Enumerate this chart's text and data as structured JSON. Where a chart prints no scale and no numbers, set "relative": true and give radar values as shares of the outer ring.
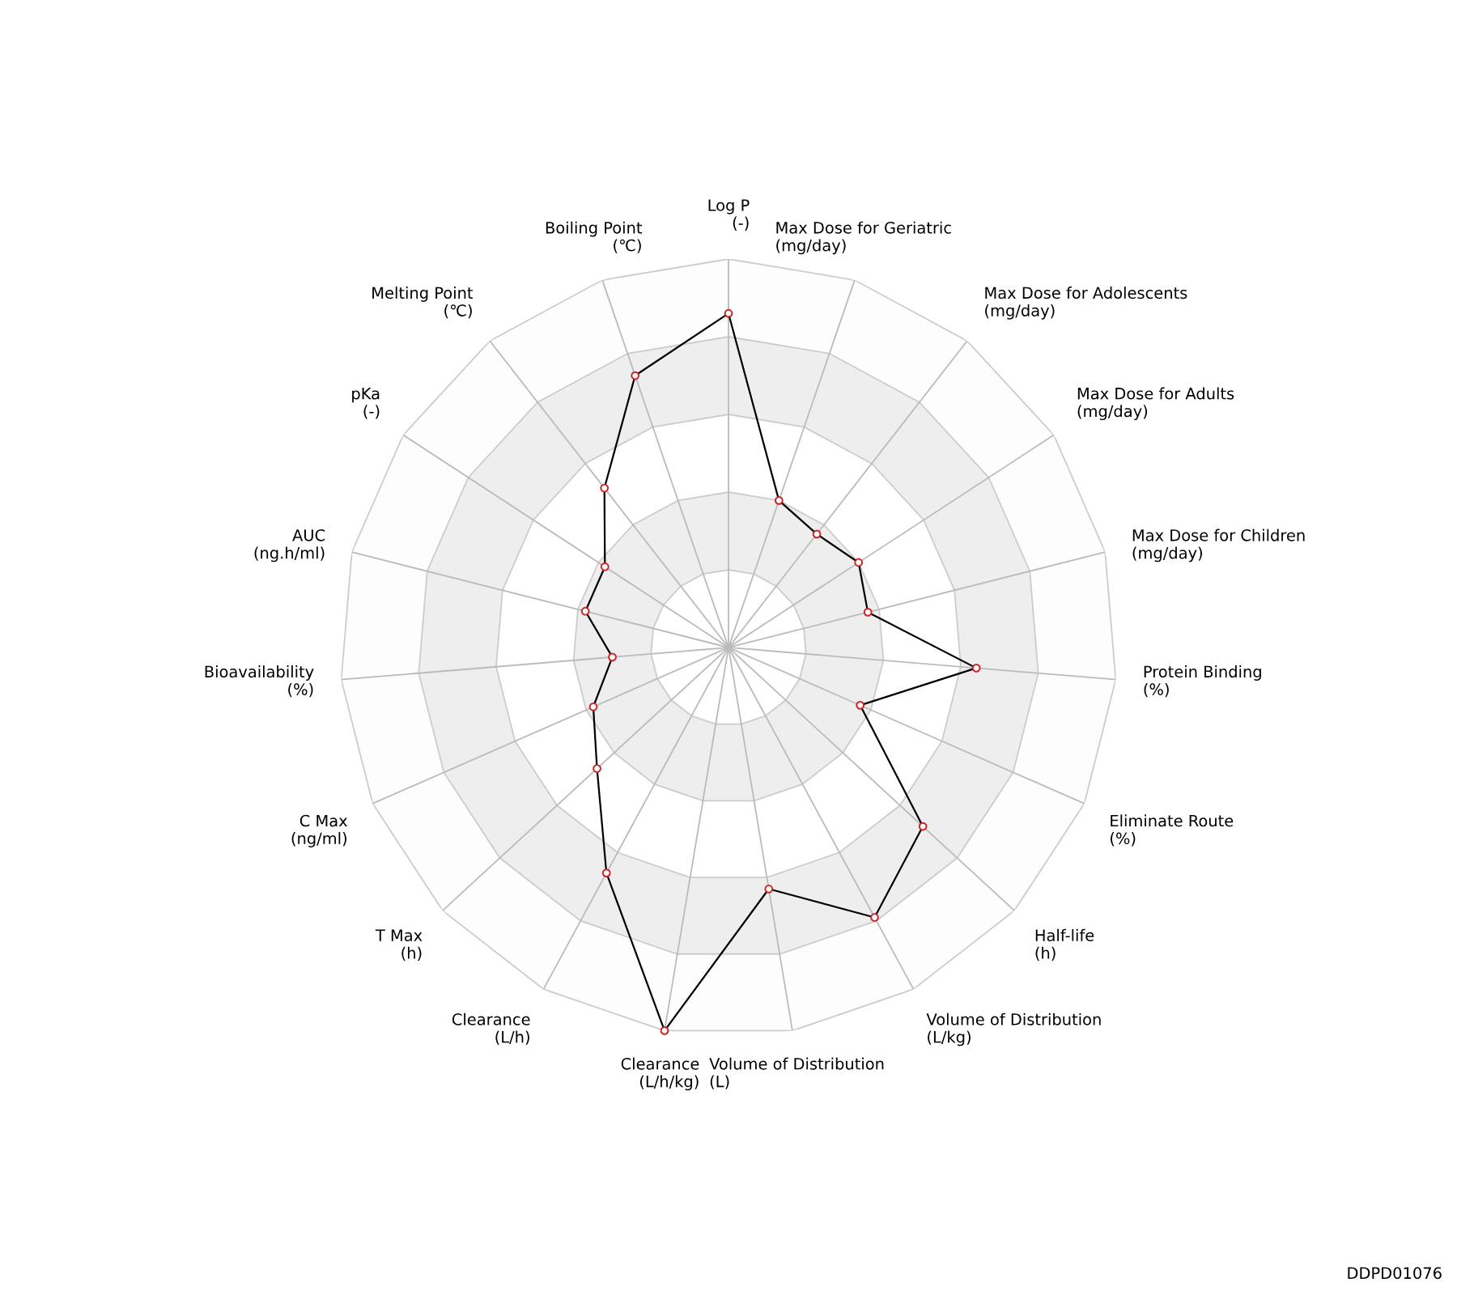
{
  "chart_data": {
    "type": "radar",
    "relative": true,
    "grid": true,
    "marker": "circle",
    "line_style": "solid",
    "categories": [
      "Log P\n(-)",
      "Max Dose for Geriatric\n(mg/day)",
      "Max Dose for Adolescents\n(mg/day)",
      "Max Dose for Adults\n(mg/day)",
      "Max Dose for Children\n(mg/day)",
      "Protein Binding\n(%)",
      "Eliminate Route\n(%)",
      "Half-life\n(h)",
      "Volume of Distribution\n(L/kg)",
      "Volume of Distribution\n(L)",
      "Clearance\n(L/h/kg)",
      "Clearance\n(L/h)",
      "T Max\n(h)",
      "C Max\n(ng/ml)",
      "Bioavailability\n(%)",
      "AUC\n(ng.h/ml)",
      "pKa\n(-)",
      "Melting Point\n(℃)",
      "Boiling Point\n(℃)"
    ],
    "series": [
      {
        "color": "#000000",
        "values": [
          0.86,
          0.4,
          0.37,
          0.4,
          0.37,
          0.64,
          0.37,
          0.68,
          0.79,
          0.63,
          1.0,
          0.66,
          0.46,
          0.38,
          0.3,
          0.38,
          0.38,
          0.52,
          0.74
        ]
      }
    ],
    "annotations": [
      "DDPD01076"
    ]
  }
}
